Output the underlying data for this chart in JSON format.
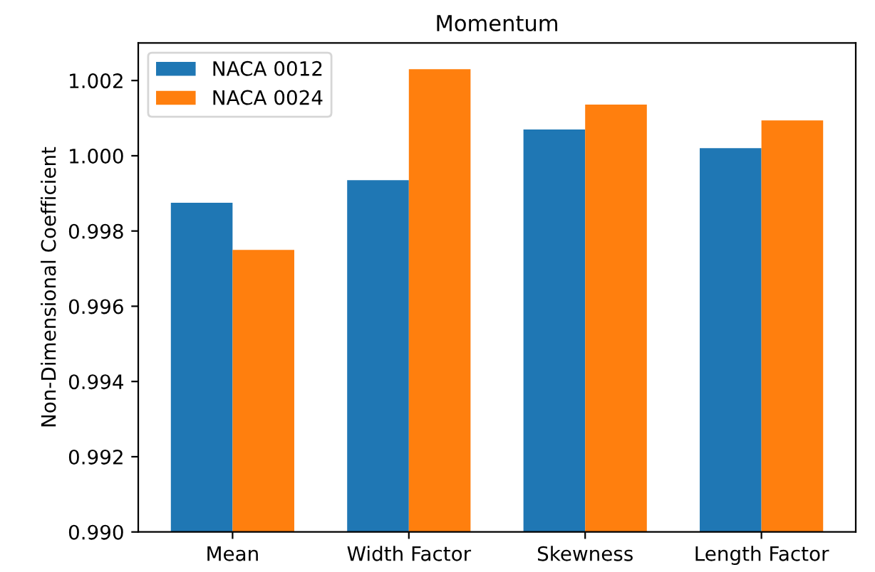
{
  "chart_data": {
    "type": "bar",
    "title": "Momentum",
    "ylabel": "Non-Dimensional Coefficient",
    "categories": [
      "Mean",
      "Width Factor",
      "Skewness",
      "Length Factor"
    ],
    "series": [
      {
        "name": "NACA 0012",
        "color": "#1f77b4",
        "values": [
          0.99875,
          0.99935,
          1.0007,
          1.0002
        ]
      },
      {
        "name": "NACA 0024",
        "color": "#ff7f0e",
        "values": [
          0.9975,
          1.0023,
          1.00136,
          1.00094
        ]
      }
    ],
    "ylim": [
      0.99,
      1.003
    ],
    "yticks": [
      {
        "value": 0.99,
        "label": "0.990"
      },
      {
        "value": 0.992,
        "label": "0.992"
      },
      {
        "value": 0.994,
        "label": "0.994"
      },
      {
        "value": 0.996,
        "label": "0.996"
      },
      {
        "value": 0.998,
        "label": "0.998"
      },
      {
        "value": 1.0,
        "label": "1.000"
      },
      {
        "value": 1.002,
        "label": "1.002"
      }
    ],
    "grid": false,
    "legend": "top left"
  }
}
